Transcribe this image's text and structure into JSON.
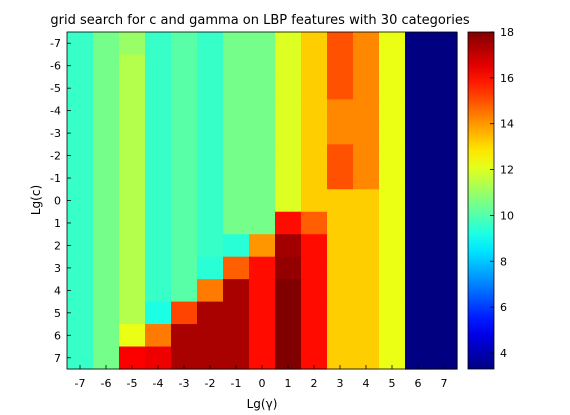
{
  "chart_data": {
    "type": "heatmap",
    "title": "grid search for c and gamma on LBP features with 30 categories",
    "xlabel": "Lg(γ)",
    "ylabel": "Lg(c)",
    "x": [
      "-7",
      "-6",
      "-5",
      "-4",
      "-3",
      "-2",
      "-1",
      "0",
      "1",
      "2",
      "3",
      "4",
      "5",
      "6",
      "7"
    ],
    "y": [
      "-7",
      "-6",
      "-5",
      "-4",
      "-3",
      "-2",
      "-1",
      "0",
      "1",
      "2",
      "3",
      "4",
      "5",
      "6",
      "7"
    ],
    "values": [
      [
        9.6,
        10.5,
        11.0,
        9.6,
        10.1,
        9.6,
        10.5,
        10.5,
        12.0,
        13.2,
        15.0,
        14.2,
        12.2,
        3.3,
        3.3
      ],
      [
        9.6,
        10.5,
        11.4,
        9.6,
        10.1,
        9.6,
        10.5,
        10.5,
        12.0,
        13.2,
        15.0,
        14.2,
        12.2,
        3.3,
        3.3
      ],
      [
        9.6,
        10.5,
        11.4,
        9.6,
        10.1,
        9.6,
        10.5,
        10.5,
        12.0,
        13.2,
        15.0,
        14.2,
        12.2,
        3.3,
        3.3
      ],
      [
        9.6,
        10.5,
        11.4,
        9.6,
        10.1,
        9.6,
        10.5,
        10.5,
        12.0,
        13.2,
        14.2,
        14.2,
        12.2,
        3.3,
        3.3
      ],
      [
        9.6,
        10.5,
        11.4,
        9.6,
        10.1,
        9.6,
        10.5,
        10.5,
        12.0,
        13.2,
        14.2,
        14.2,
        12.2,
        3.3,
        3.3
      ],
      [
        9.6,
        10.5,
        11.4,
        9.6,
        10.1,
        9.6,
        10.5,
        10.5,
        12.0,
        13.2,
        15.0,
        14.2,
        12.2,
        3.3,
        3.3
      ],
      [
        9.6,
        10.5,
        11.4,
        9.6,
        10.1,
        9.6,
        10.5,
        10.5,
        12.0,
        13.2,
        15.0,
        14.2,
        12.2,
        3.3,
        3.3
      ],
      [
        9.6,
        10.5,
        11.4,
        9.6,
        10.1,
        9.6,
        10.5,
        10.5,
        12.0,
        13.2,
        13.2,
        13.2,
        12.2,
        3.3,
        3.3
      ],
      [
        9.6,
        10.5,
        11.4,
        9.6,
        10.1,
        9.6,
        10.5,
        10.5,
        16.0,
        14.8,
        13.2,
        13.2,
        12.2,
        3.3,
        3.3
      ],
      [
        9.6,
        10.5,
        11.4,
        9.6,
        10.1,
        9.6,
        9.4,
        14.0,
        17.5,
        16.0,
        13.2,
        13.2,
        12.2,
        3.3,
        3.3
      ],
      [
        9.6,
        10.5,
        11.4,
        9.6,
        10.1,
        9.4,
        14.8,
        16.0,
        17.7,
        16.0,
        13.2,
        13.2,
        12.2,
        3.3,
        3.3
      ],
      [
        9.6,
        10.5,
        11.4,
        9.6,
        10.1,
        14.4,
        17.4,
        16.0,
        18.0,
        16.0,
        13.2,
        13.2,
        12.2,
        3.3,
        3.3
      ],
      [
        9.6,
        10.5,
        11.4,
        9.2,
        15.2,
        17.4,
        17.4,
        16.0,
        18.0,
        16.0,
        13.2,
        13.2,
        12.2,
        3.3,
        3.3
      ],
      [
        9.6,
        10.5,
        12.2,
        14.4,
        17.4,
        17.4,
        17.4,
        16.0,
        18.0,
        16.0,
        13.2,
        13.2,
        12.2,
        3.3,
        3.3
      ],
      [
        9.6,
        10.5,
        16.2,
        16.4,
        17.4,
        17.4,
        17.4,
        16.0,
        18.0,
        16.0,
        13.2,
        13.2,
        12.2,
        3.3,
        3.3
      ]
    ],
    "colormap": "jet",
    "colorbar": {
      "min": 3.3,
      "max": 18,
      "ticks": [
        "4",
        "6",
        "8",
        "10",
        "12",
        "14",
        "16",
        "18"
      ]
    },
    "grid": false
  }
}
